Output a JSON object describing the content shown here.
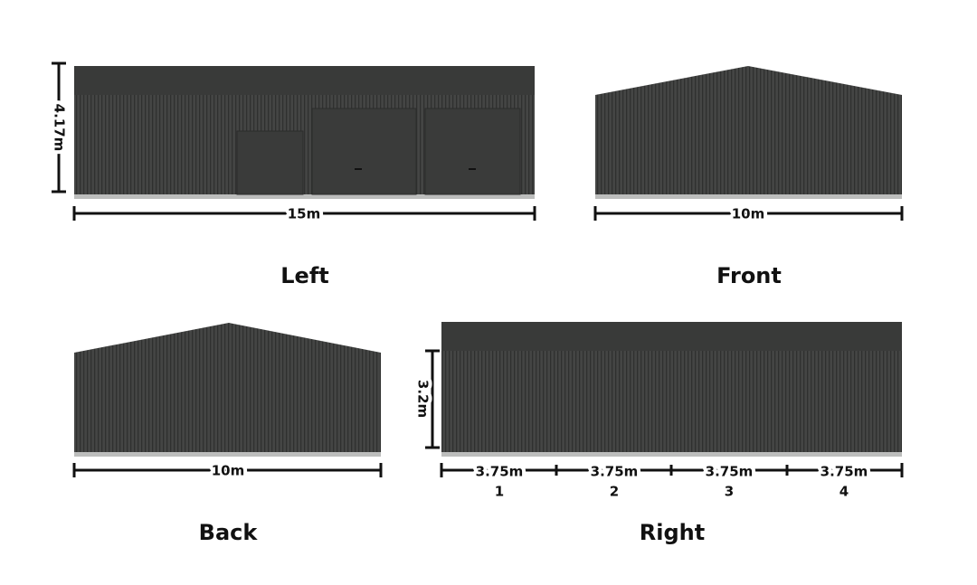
{
  "views": [
    {
      "label": "Left",
      "dimensions": {
        "height": "4.17m",
        "width": "15m"
      }
    },
    {
      "label": "Front",
      "dimensions": {
        "width": "10m"
      }
    },
    {
      "label": "Back",
      "dimensions": {
        "width": "10m"
      }
    },
    {
      "label": "Right",
      "dimensions": {
        "height": "3.2m",
        "bays": [
          {
            "width": "3.75m",
            "number": "1"
          },
          {
            "width": "3.75m",
            "number": "2"
          },
          {
            "width": "3.75m",
            "number": "3"
          },
          {
            "width": "3.75m",
            "number": "4"
          }
        ]
      }
    }
  ]
}
